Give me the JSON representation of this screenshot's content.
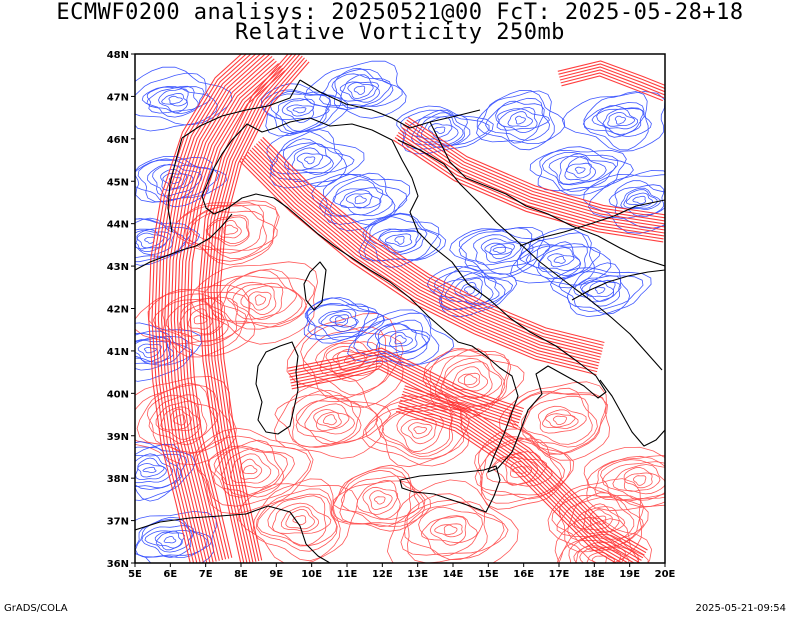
{
  "title": {
    "line1": "ECMWF0200 analisys: 20250521@00 FcT: 2025-05-28+18",
    "line2": "Relative Vorticity 250mb"
  },
  "map": {
    "lon_range": [
      5,
      20
    ],
    "lat_range": [
      36,
      48
    ],
    "x_ticks": [
      "5E",
      "6E",
      "7E",
      "8E",
      "9E",
      "10E",
      "11E",
      "12E",
      "13E",
      "14E",
      "15E",
      "16E",
      "17E",
      "18E",
      "19E",
      "20E"
    ],
    "y_ticks": [
      "36N",
      "37N",
      "38N",
      "39N",
      "40N",
      "41N",
      "42N",
      "43N",
      "44N",
      "45N",
      "46N",
      "47N",
      "48N"
    ],
    "positive_color": "#ff3030",
    "negative_color": "#2040ff",
    "coastline_color": "#000000"
  },
  "footer": {
    "left": "GrADS/COLA",
    "right": "2025-05-21-09:54"
  }
}
